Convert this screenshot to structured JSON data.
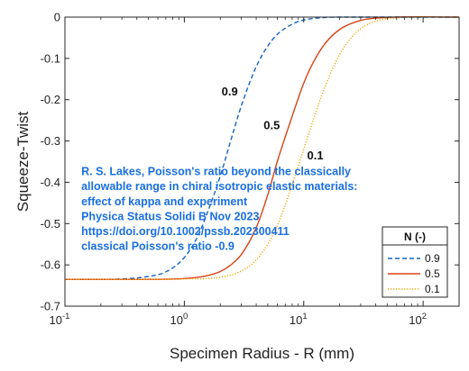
{
  "chart_data": {
    "type": "line",
    "xlabel": "Specimen Radius - R (mm)",
    "ylabel": "Squeeze-Twist",
    "xscale": "log",
    "xlim": [
      0.1,
      200
    ],
    "ylim": [
      -0.7,
      0
    ],
    "x_ticks": [
      0.1,
      1,
      10,
      100
    ],
    "x_tick_labels": [
      {
        "base": "10",
        "exp": "-1"
      },
      {
        "base": "10",
        "exp": "0"
      },
      {
        "base": "10",
        "exp": "1"
      },
      {
        "base": "10",
        "exp": "2"
      }
    ],
    "y_ticks": [
      0,
      -0.1,
      -0.2,
      -0.3,
      -0.4,
      -0.5,
      -0.6,
      -0.7
    ],
    "y_tick_labels": [
      "0",
      "-0.1",
      "-0.2",
      "-0.3",
      "-0.4",
      "-0.5",
      "-0.6",
      "-0.7"
    ],
    "grid": false,
    "legend": {
      "title": "N (-)",
      "position": "bottom-right"
    },
    "series": [
      {
        "name": "0.9",
        "color": "#1565c0",
        "style": "dashed",
        "x": [
          0.1,
          0.3,
          0.5,
          0.7,
          1.0,
          1.3,
          1.6,
          2.0,
          2.5,
          3.0,
          4.0,
          5.0,
          6.0,
          8.0,
          10,
          15,
          20,
          200
        ],
        "y": [
          -0.635,
          -0.634,
          -0.628,
          -0.617,
          -0.582,
          -0.53,
          -0.465,
          -0.385,
          -0.29,
          -0.215,
          -0.12,
          -0.07,
          -0.042,
          -0.017,
          -0.007,
          -0.001,
          0.0,
          0.0
        ]
      },
      {
        "name": "0.5",
        "color": "#d84315",
        "style": "solid",
        "x": [
          0.1,
          0.5,
          1.0,
          1.5,
          2.0,
          2.5,
          3.0,
          4.0,
          5.0,
          6.0,
          7.0,
          8.0,
          10,
          12,
          15,
          20,
          30,
          50,
          200
        ],
        "y": [
          -0.635,
          -0.635,
          -0.633,
          -0.627,
          -0.616,
          -0.598,
          -0.575,
          -0.51,
          -0.43,
          -0.35,
          -0.29,
          -0.24,
          -0.16,
          -0.11,
          -0.065,
          -0.03,
          -0.008,
          -0.001,
          0.0
        ]
      },
      {
        "name": "0.1",
        "color": "#f0a800",
        "style": "dotted",
        "x": [
          0.1,
          0.7,
          1.0,
          2.0,
          3.0,
          4.0,
          5.0,
          6.0,
          7.0,
          8.0,
          10,
          12,
          15,
          20,
          25,
          30,
          40,
          60,
          200
        ],
        "y": [
          -0.635,
          -0.635,
          -0.634,
          -0.63,
          -0.615,
          -0.588,
          -0.55,
          -0.505,
          -0.455,
          -0.405,
          -0.32,
          -0.25,
          -0.17,
          -0.09,
          -0.05,
          -0.028,
          -0.01,
          -0.002,
          0.0
        ]
      }
    ],
    "curve_labels": [
      {
        "text": "0.9",
        "x": 2.4,
        "y": -0.19
      },
      {
        "text": "0.5",
        "x": 5.4,
        "y": -0.272
      },
      {
        "text": "0.1",
        "x": 12.5,
        "y": -0.345
      }
    ],
    "annotation": {
      "x": 0.137,
      "y": -0.383,
      "lines": [
        "R. S. Lakes, Poisson's ratio beyond the classically",
        "allowable range in chiral isotropic elastic materials:",
        "effect of kappa and experiment",
        "Physica Status Solidi B  Nov 2023",
        "https://doi.org/10.1002/pssb.202300411",
        "classical Poisson's ratio -0.9"
      ]
    }
  }
}
